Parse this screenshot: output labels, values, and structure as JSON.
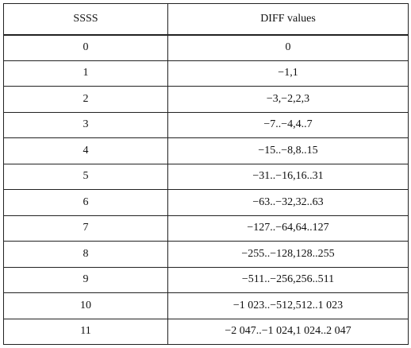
{
  "table": {
    "headers": [
      "SSSS",
      "DIFF values"
    ],
    "rows": [
      [
        "0",
        "0"
      ],
      [
        "1",
        "−1,1"
      ],
      [
        "2",
        "−3,−2,2,3"
      ],
      [
        "3",
        "−7..−4,4..7"
      ],
      [
        "4",
        "−15..−8,8..15"
      ],
      [
        "5",
        "−31..−16,16..31"
      ],
      [
        "6",
        "−63..−32,32..63"
      ],
      [
        "7",
        "−127..−64,64..127"
      ],
      [
        "8",
        "−255..−128,128..255"
      ],
      [
        "9",
        "−511..−256,256..511"
      ],
      [
        "10",
        "−1 023..−512,512..1 023"
      ],
      [
        "11",
        "−2 047..−1 024,1 024..2 047"
      ]
    ]
  }
}
